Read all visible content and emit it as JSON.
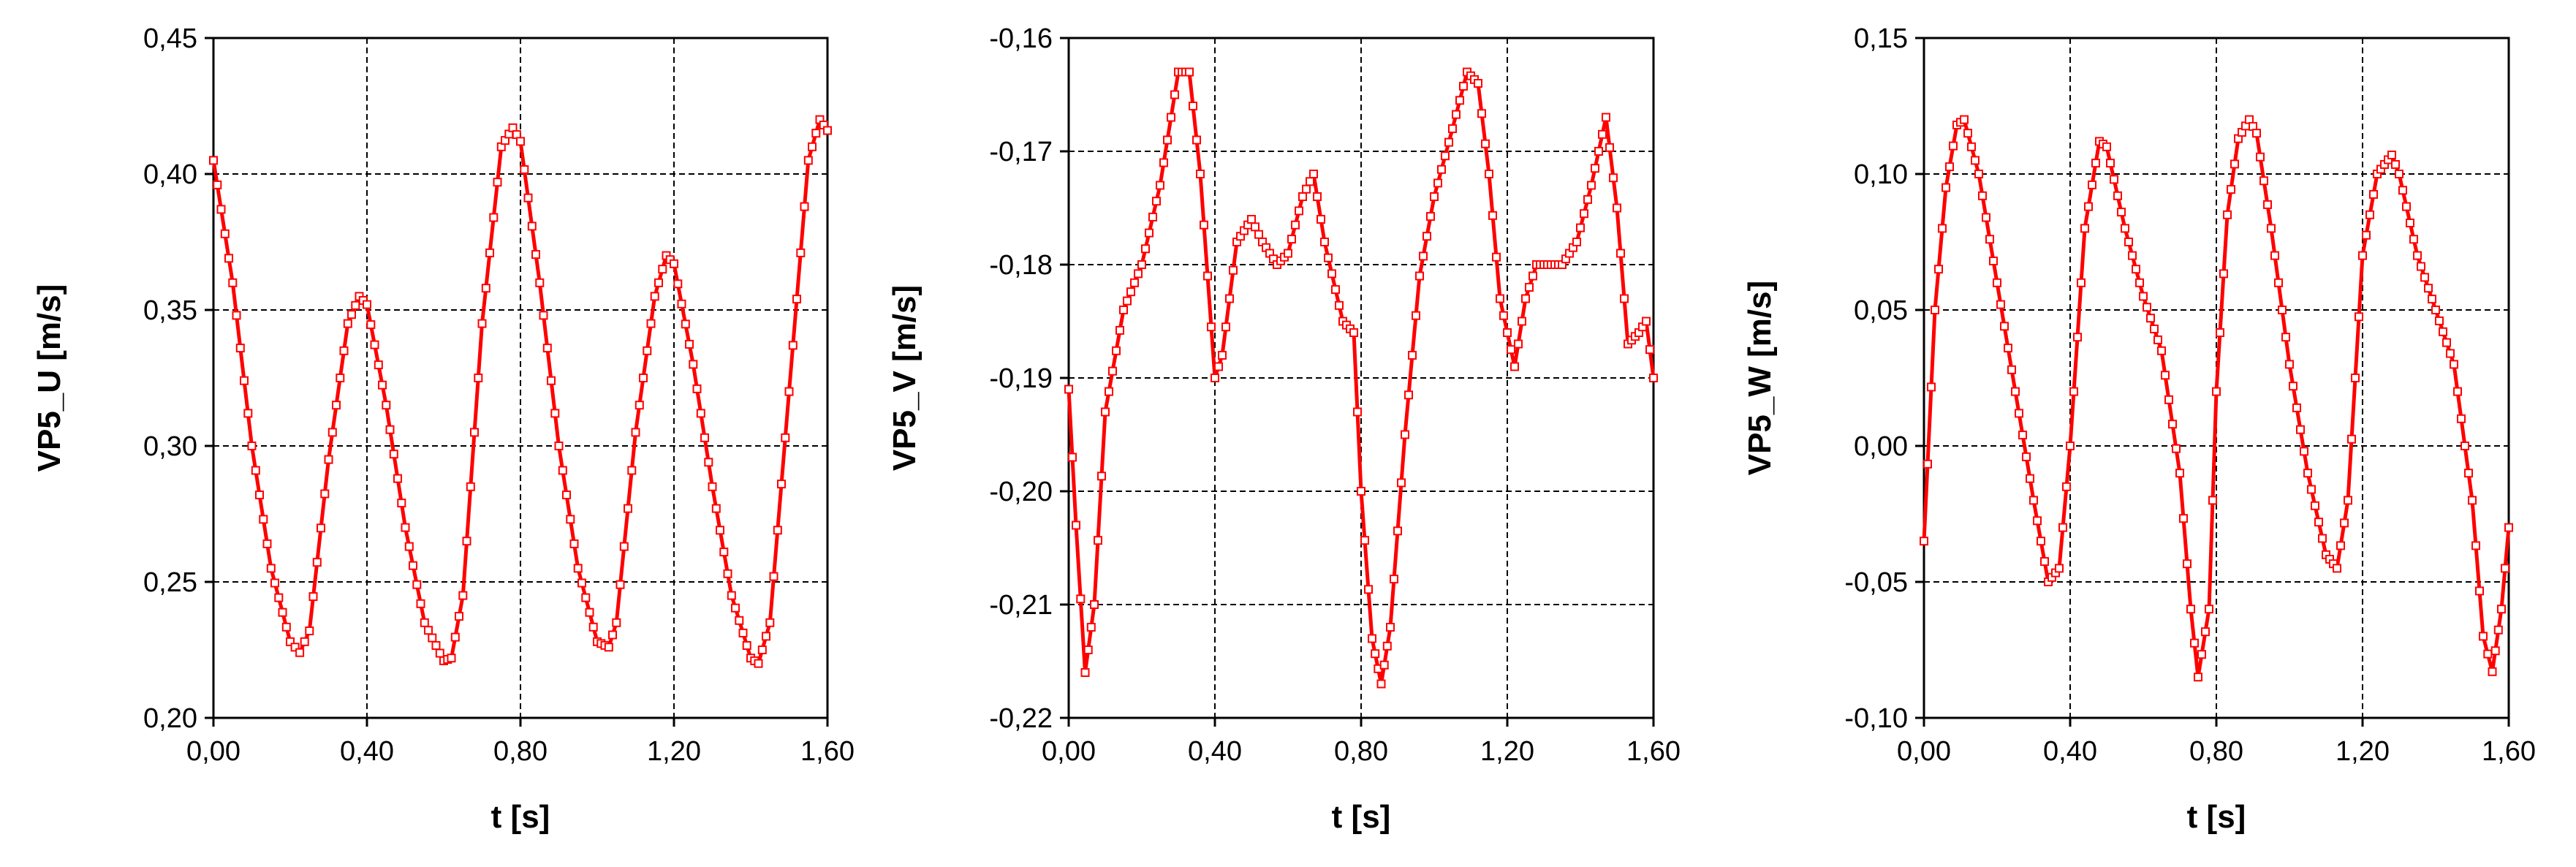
{
  "chart_data": [
    {
      "type": "line",
      "title": "",
      "xlabel": "t [s]",
      "ylabel": "VP5_U [m/s]",
      "xlim": [
        0,
        1.6
      ],
      "ylim": [
        0.2,
        0.45
      ],
      "x_ticks": [
        0,
        0.4,
        0.8,
        1.2,
        1.6
      ],
      "x_tick_labels": [
        "0,00",
        "0,40",
        "0,80",
        "1,20",
        "1,60"
      ],
      "y_ticks": [
        0.2,
        0.25,
        0.3,
        0.35,
        0.4,
        0.45
      ],
      "y_tick_labels": [
        "0,20",
        "0,25",
        "0,30",
        "0,35",
        "0,40",
        "0,45"
      ],
      "grid": true,
      "legend": "none",
      "marker": "hollow-square",
      "color": "#ff0000",
      "series": [
        {
          "x": [
            0.0,
            0.05,
            0.1,
            0.15,
            0.2,
            0.225,
            0.25,
            0.3,
            0.35,
            0.38,
            0.4,
            0.45,
            0.5,
            0.55,
            0.6,
            0.62,
            0.65,
            0.7,
            0.75,
            0.78,
            0.8,
            0.85,
            0.9,
            0.95,
            1.0,
            1.03,
            1.05,
            1.1,
            1.15,
            1.18,
            1.2,
            1.25,
            1.3,
            1.35,
            1.4,
            1.42,
            1.45,
            1.5,
            1.55,
            1.58,
            1.6
          ],
          "y": [
            0.405,
            0.36,
            0.3,
            0.255,
            0.228,
            0.224,
            0.232,
            0.295,
            0.345,
            0.355,
            0.352,
            0.315,
            0.27,
            0.235,
            0.221,
            0.222,
            0.245,
            0.345,
            0.41,
            0.417,
            0.412,
            0.36,
            0.3,
            0.255,
            0.228,
            0.226,
            0.235,
            0.305,
            0.355,
            0.37,
            0.367,
            0.33,
            0.285,
            0.245,
            0.222,
            0.22,
            0.235,
            0.32,
            0.405,
            0.42,
            0.416
          ]
        }
      ]
    },
    {
      "type": "line",
      "title": "",
      "xlabel": "t [s]",
      "ylabel": "VP5_V [m/s]",
      "xlim": [
        0,
        1.6
      ],
      "ylim": [
        -0.22,
        -0.16
      ],
      "x_ticks": [
        0,
        0.4,
        0.8,
        1.2,
        1.6
      ],
      "x_tick_labels": [
        "0,00",
        "0,40",
        "0,80",
        "1,20",
        "1,60"
      ],
      "y_ticks": [
        -0.22,
        -0.21,
        -0.2,
        -0.19,
        -0.18,
        -0.17,
        -0.16
      ],
      "y_tick_labels": [
        "-0,22",
        "-0,21",
        "-0,20",
        "-0,19",
        "-0,18",
        "-0,17",
        "-0,16"
      ],
      "grid": true,
      "legend": "none",
      "marker": "hollow-square",
      "color": "#ff0000",
      "series": [
        {
          "x": [
            0.0,
            0.02,
            0.045,
            0.07,
            0.1,
            0.15,
            0.2,
            0.25,
            0.3,
            0.33,
            0.36,
            0.4,
            0.42,
            0.46,
            0.5,
            0.53,
            0.57,
            0.6,
            0.64,
            0.67,
            0.7,
            0.75,
            0.78,
            0.8,
            0.83,
            0.855,
            0.88,
            0.92,
            0.96,
            1.0,
            1.05,
            1.09,
            1.12,
            1.15,
            1.18,
            1.22,
            1.25,
            1.28,
            1.32,
            1.35,
            1.39,
            1.43,
            1.47,
            1.5,
            1.53,
            1.56,
            1.58,
            1.6
          ],
          "y": [
            -0.191,
            -0.203,
            -0.216,
            -0.21,
            -0.193,
            -0.184,
            -0.18,
            -0.173,
            -0.163,
            -0.163,
            -0.172,
            -0.19,
            -0.188,
            -0.178,
            -0.176,
            -0.178,
            -0.18,
            -0.179,
            -0.174,
            -0.172,
            -0.178,
            -0.185,
            -0.186,
            -0.2,
            -0.213,
            -0.217,
            -0.212,
            -0.195,
            -0.181,
            -0.174,
            -0.168,
            -0.163,
            -0.164,
            -0.172,
            -0.183,
            -0.189,
            -0.183,
            -0.18,
            -0.18,
            -0.18,
            -0.178,
            -0.173,
            -0.167,
            -0.175,
            -0.187,
            -0.186,
            -0.185,
            -0.19
          ]
        }
      ]
    },
    {
      "type": "line",
      "title": "",
      "xlabel": "t [s]",
      "ylabel": "VP5_W [m/s]",
      "xlim": [
        0,
        1.6
      ],
      "ylim": [
        -0.1,
        0.15
      ],
      "x_ticks": [
        0,
        0.4,
        0.8,
        1.2,
        1.6
      ],
      "x_tick_labels": [
        "0,00",
        "0,40",
        "0,80",
        "1,20",
        "1,60"
      ],
      "y_ticks": [
        -0.1,
        -0.05,
        0,
        0.05,
        0.1,
        0.15
      ],
      "y_tick_labels": [
        "-0,10",
        "-0,05",
        "0,00",
        "0,05",
        "0,10",
        "0,15"
      ],
      "grid": true,
      "legend": "none",
      "marker": "hollow-square",
      "color": "#ff0000",
      "series": [
        {
          "x": [
            0.0,
            0.03,
            0.06,
            0.09,
            0.11,
            0.15,
            0.2,
            0.25,
            0.3,
            0.34,
            0.37,
            0.4,
            0.44,
            0.48,
            0.5,
            0.55,
            0.6,
            0.65,
            0.7,
            0.73,
            0.75,
            0.78,
            0.8,
            0.83,
            0.86,
            0.89,
            0.91,
            0.95,
            1.0,
            1.05,
            1.1,
            1.13,
            1.16,
            1.2,
            1.24,
            1.28,
            1.3,
            1.35,
            1.4,
            1.45,
            1.5,
            1.53,
            1.555,
            1.58,
            1.6
          ],
          "y": [
            -0.035,
            0.05,
            0.095,
            0.118,
            0.12,
            0.1,
            0.06,
            0.02,
            -0.02,
            -0.05,
            -0.045,
            0.0,
            0.08,
            0.112,
            0.11,
            0.08,
            0.055,
            0.035,
            -0.01,
            -0.06,
            -0.085,
            -0.06,
            0.02,
            0.085,
            0.113,
            0.12,
            0.115,
            0.08,
            0.03,
            -0.01,
            -0.04,
            -0.045,
            -0.02,
            0.07,
            0.1,
            0.107,
            0.1,
            0.07,
            0.05,
            0.03,
            -0.02,
            -0.07,
            -0.083,
            -0.06,
            -0.03
          ]
        }
      ]
    }
  ]
}
